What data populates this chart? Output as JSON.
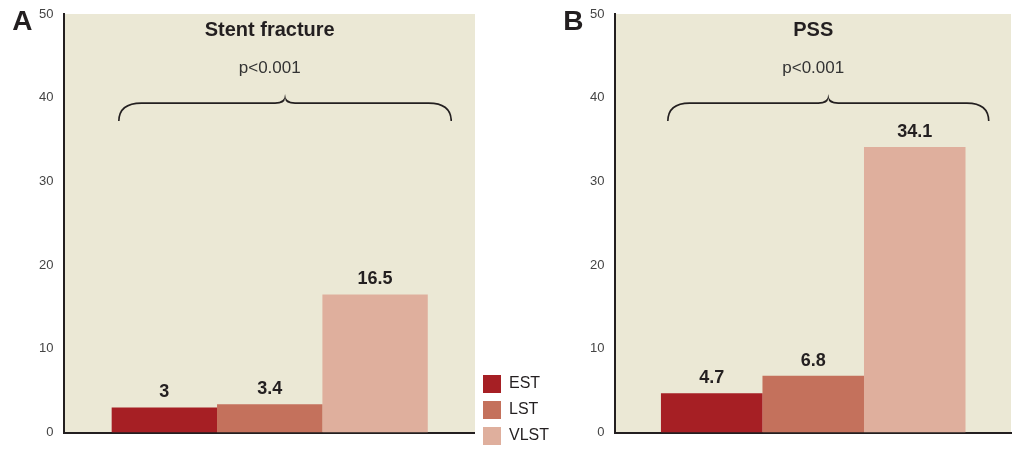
{
  "chart_data": [
    {
      "type": "bar",
      "title": "Stent fracture",
      "annotations": [
        "A",
        "p<0.001"
      ],
      "categories": [
        null
      ],
      "series": [
        {
          "name": "EST",
          "color": "#a61f24",
          "values": [
            3
          ]
        },
        {
          "name": "LST",
          "color": "#c4715c",
          "values": [
            3.4
          ]
        },
        {
          "name": "VLST",
          "color": "#dfaf9d",
          "values": [
            16.5
          ]
        }
      ],
      "ylim": [
        0,
        50
      ],
      "yticks": [
        0,
        10,
        20,
        30,
        40,
        50
      ],
      "grid": false,
      "legend": "right",
      "data_labels": true
    },
    {
      "type": "bar",
      "title": "PSS",
      "annotations": [
        "B",
        "p<0.001"
      ],
      "categories": [
        null
      ],
      "series": [
        {
          "color": "#a61f24",
          "values": [
            4.7
          ]
        },
        {
          "color": "#c4715c",
          "values": [
            6.8
          ]
        },
        {
          "color": "#dfaf9d",
          "values": [
            34.1
          ]
        }
      ],
      "ylim": [
        0,
        50
      ],
      "yticks": [
        0,
        10,
        20,
        30,
        40,
        50
      ],
      "grid": false,
      "legend": false,
      "data_labels": true
    }
  ]
}
